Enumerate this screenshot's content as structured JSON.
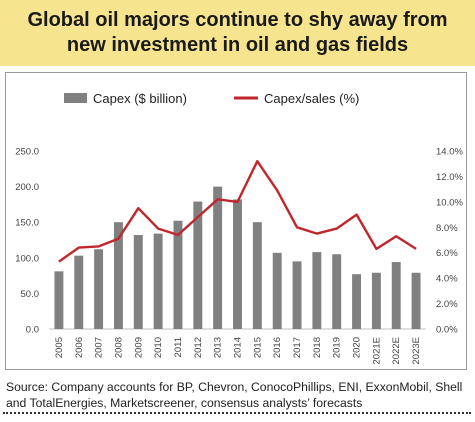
{
  "title_line1": "Global oil majors continue to shy away from",
  "title_line2": "new investment in oil and gas fields",
  "source_line1": "Source: Company accounts for BP, Chevron, ConocoPhillips, ENI, ExxonMobil, Shell",
  "source_line2": "and TotalEnergies, Marketscreener, consensus analysts’ forecasts",
  "colors": {
    "title_bg": "#f6e48e",
    "bar": "#808080",
    "line": "#c0272d"
  },
  "chart_data": {
    "type": "bar+line",
    "categories": [
      "2005",
      "2006",
      "2007",
      "2008",
      "2009",
      "2010",
      "2011",
      "2012",
      "2013",
      "2014",
      "2015",
      "2016",
      "2017",
      "2018",
      "2019",
      "2020",
      "2021E",
      "2022E",
      "2023E"
    ],
    "series": [
      {
        "name": "Capex ($ billion)",
        "type": "bar",
        "axis": "left",
        "values": [
          81,
          103,
          112,
          150,
          132,
          134,
          152,
          179,
          200,
          182,
          150,
          107,
          95,
          108,
          105,
          77,
          79,
          94,
          79
        ]
      },
      {
        "name": "Capex/sales (%)",
        "type": "line",
        "axis": "right",
        "values": [
          5.3,
          6.4,
          6.5,
          7.1,
          9.5,
          7.9,
          7.4,
          8.8,
          10.2,
          10.0,
          13.2,
          10.9,
          8.0,
          7.5,
          7.9,
          9.0,
          6.3,
          7.3,
          6.3
        ]
      }
    ],
    "y_left": {
      "min": 0,
      "max": 250,
      "step": 50,
      "ticks": [
        "0.0",
        "50.0",
        "100.0",
        "150.0",
        "200.0",
        "250.0"
      ]
    },
    "y_right": {
      "min": 0,
      "max": 14,
      "step": 2,
      "ticks": [
        "0.0%",
        "2.0%",
        "4.0%",
        "6.0%",
        "8.0%",
        "10.0%",
        "12.0%",
        "14.0%"
      ]
    },
    "legend_position": "top",
    "grid": false
  }
}
